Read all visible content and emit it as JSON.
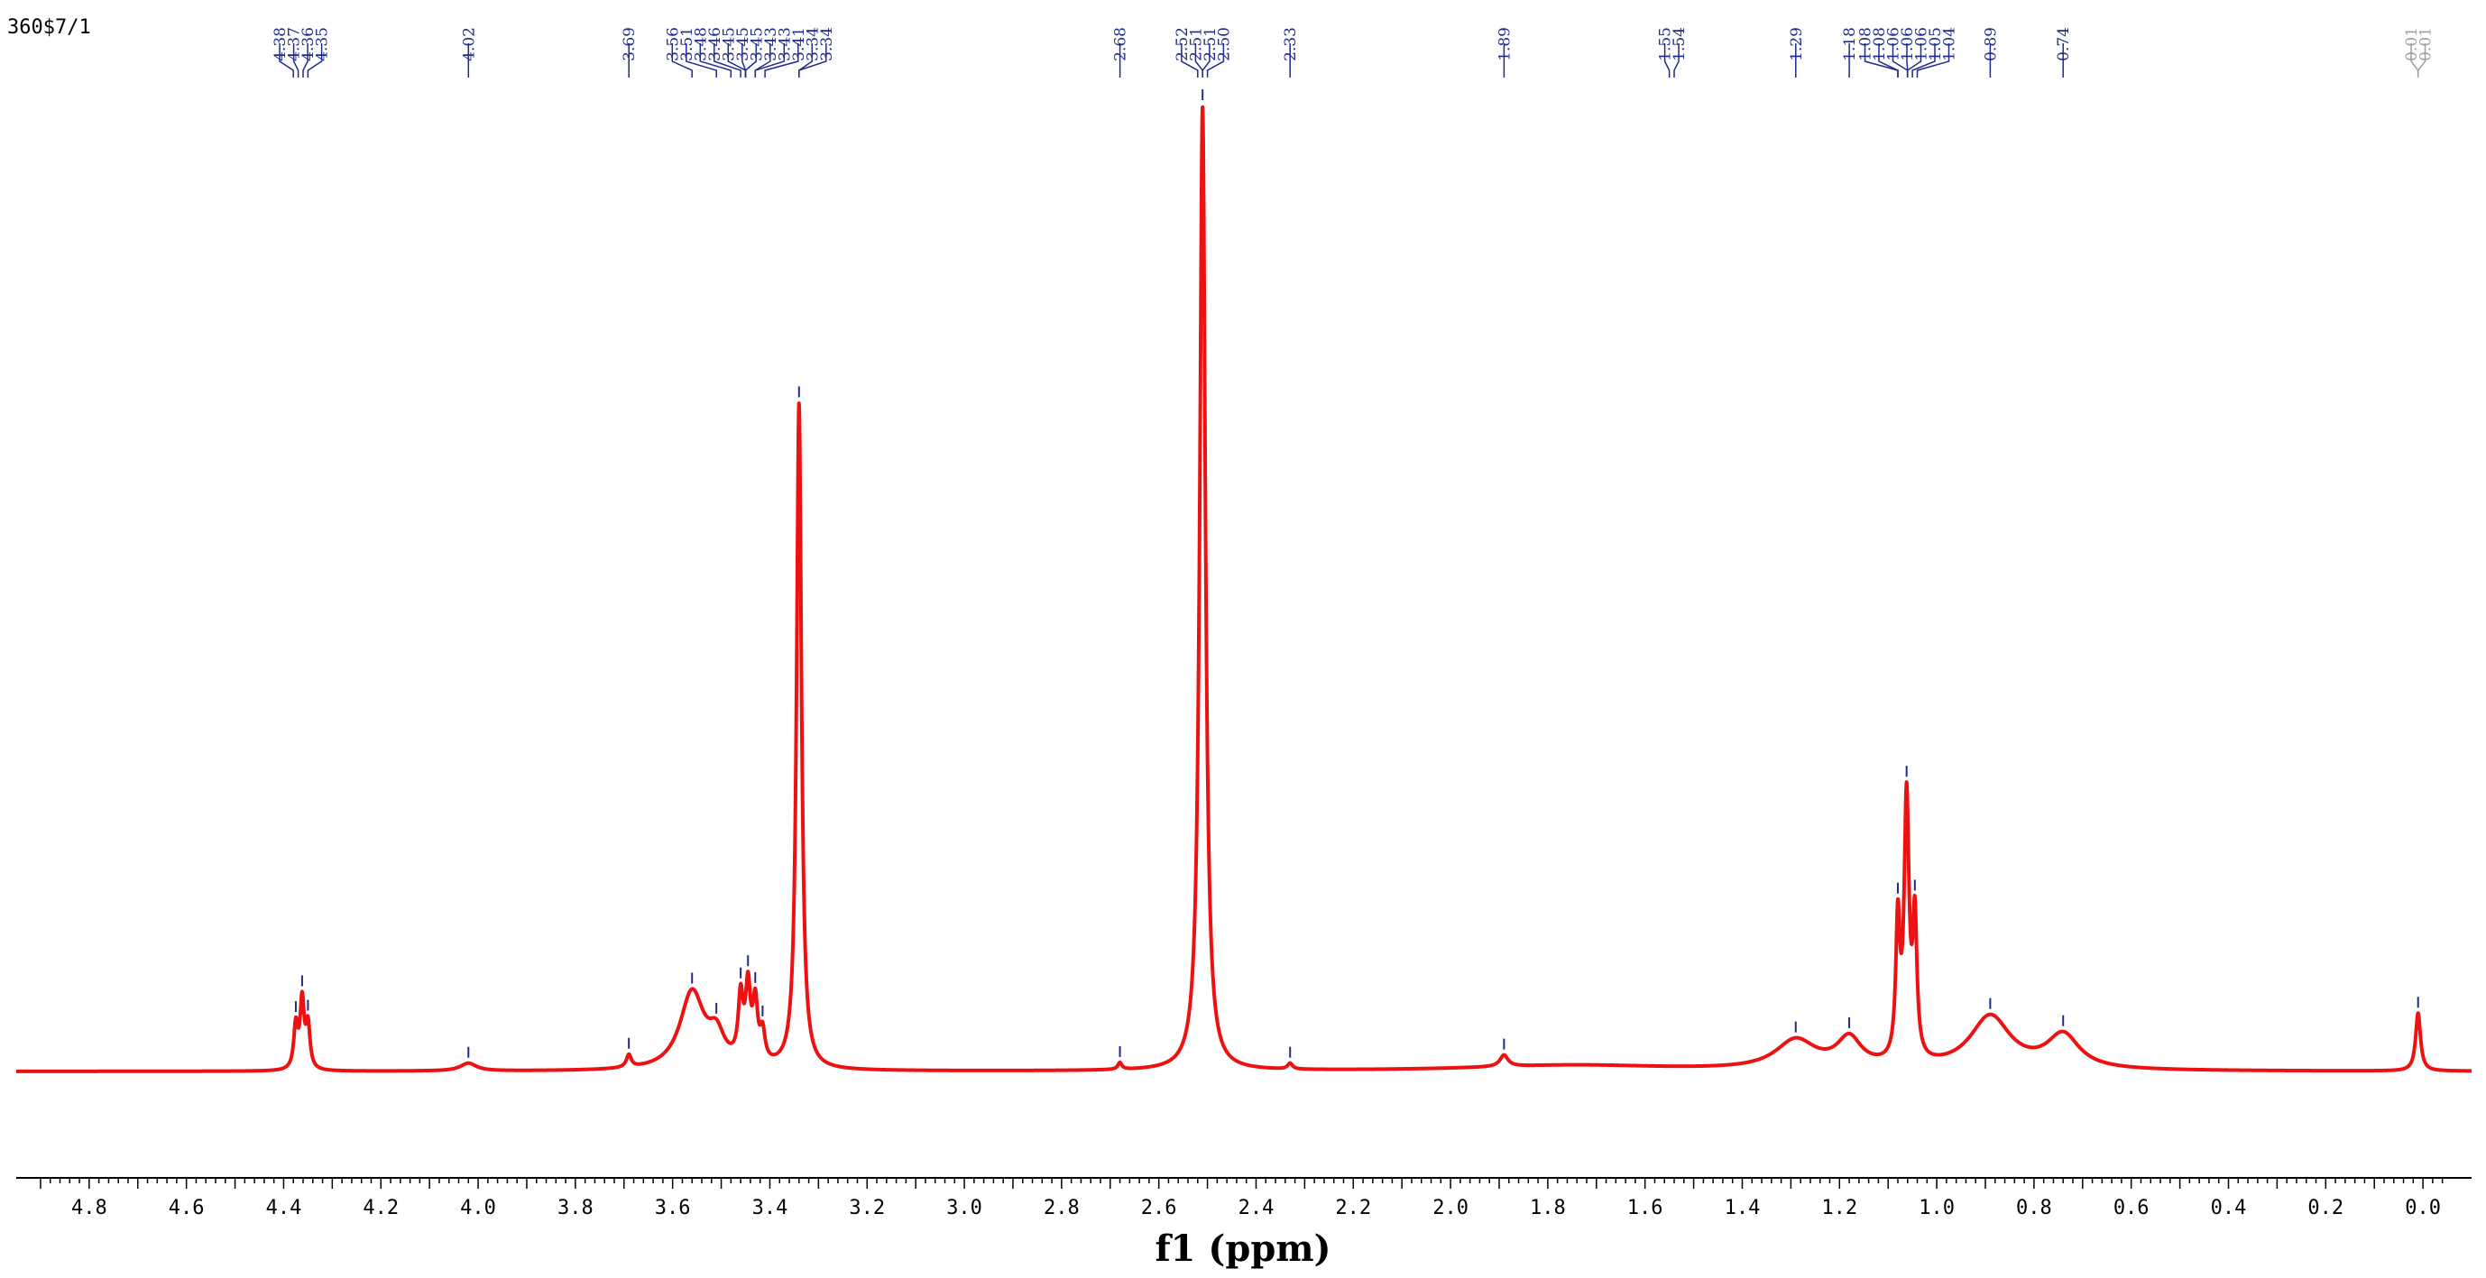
{
  "chart_data": {
    "type": "line",
    "title": "360$7/1",
    "xlabel": "f1 (ppm)",
    "ylabel": "",
    "x_reversed": true,
    "xlim": [
      4.95,
      -0.1
    ],
    "ylim": [
      0,
      1.0
    ],
    "grid": false,
    "legend": "none",
    "x_ticks": [
      "4.8",
      "4.6",
      "4.4",
      "4.2",
      "4.0",
      "3.8",
      "3.6",
      "3.4",
      "3.2",
      "3.0",
      "2.8",
      "2.6",
      "2.4",
      "2.2",
      "2.0",
      "1.8",
      "1.6",
      "1.4",
      "1.2",
      "1.0",
      "0.8",
      "0.6",
      "0.4",
      "0.2",
      "0.0"
    ],
    "peak_list": [
      "4.38",
      "4.37",
      "4.36",
      "4.35",
      "4.02",
      "3.69",
      "3.56",
      "3.51",
      "3.48",
      "3.46",
      "3.45",
      "3.45",
      "3.45",
      "3.43",
      "3.43",
      "3.41",
      "3.34",
      "3.34",
      "2.68",
      "2.52",
      "2.51",
      "2.51",
      "2.50",
      "2.33",
      "1.89",
      "1.55",
      "1.54",
      "1.29",
      "1.18",
      "1.08",
      "1.08",
      "1.06",
      "1.06",
      "1.06",
      "1.05",
      "1.04",
      "0.89",
      "0.74",
      "0.01",
      "0.01"
    ],
    "series": [
      {
        "peaks": [
          {
            "ppm": 4.375,
            "height": 0.045,
            "width": 0.005
          },
          {
            "ppm": 4.362,
            "height": 0.07,
            "width": 0.005
          },
          {
            "ppm": 4.35,
            "height": 0.045,
            "width": 0.005
          },
          {
            "ppm": 4.02,
            "height": 0.008,
            "width": 0.02
          },
          {
            "ppm": 3.69,
            "height": 0.013,
            "width": 0.006
          },
          {
            "ppm": 3.56,
            "height": 0.08,
            "width": 0.03
          },
          {
            "ppm": 3.51,
            "height": 0.03,
            "width": 0.02
          },
          {
            "ppm": 3.46,
            "height": 0.065,
            "width": 0.006
          },
          {
            "ppm": 3.445,
            "height": 0.075,
            "width": 0.006
          },
          {
            "ppm": 3.43,
            "height": 0.06,
            "width": 0.006
          },
          {
            "ppm": 3.415,
            "height": 0.03,
            "width": 0.006
          },
          {
            "ppm": 3.34,
            "height": 0.69,
            "width": 0.006
          },
          {
            "ppm": 2.68,
            "height": 0.007,
            "width": 0.005
          },
          {
            "ppm": 2.51,
            "height": 1.0,
            "width": 0.007
          },
          {
            "ppm": 2.33,
            "height": 0.006,
            "width": 0.006
          },
          {
            "ppm": 1.89,
            "height": 0.012,
            "width": 0.01
          },
          {
            "ppm": 1.75,
            "height": 0.006,
            "width": 0.25
          },
          {
            "ppm": 1.29,
            "height": 0.03,
            "width": 0.05
          },
          {
            "ppm": 1.18,
            "height": 0.03,
            "width": 0.03
          },
          {
            "ppm": 1.08,
            "height": 0.14,
            "width": 0.005
          },
          {
            "ppm": 1.062,
            "height": 0.27,
            "width": 0.006
          },
          {
            "ppm": 1.045,
            "height": 0.14,
            "width": 0.005
          },
          {
            "ppm": 0.89,
            "height": 0.055,
            "width": 0.05
          },
          {
            "ppm": 0.74,
            "height": 0.035,
            "width": 0.04
          },
          {
            "ppm": 0.01,
            "height": 0.06,
            "width": 0.006
          }
        ]
      }
    ],
    "colors": {
      "spectrum": "#ee1111",
      "labels": "#1f2a8a",
      "reference": "#9aa0a6",
      "axis": "#000000"
    }
  }
}
